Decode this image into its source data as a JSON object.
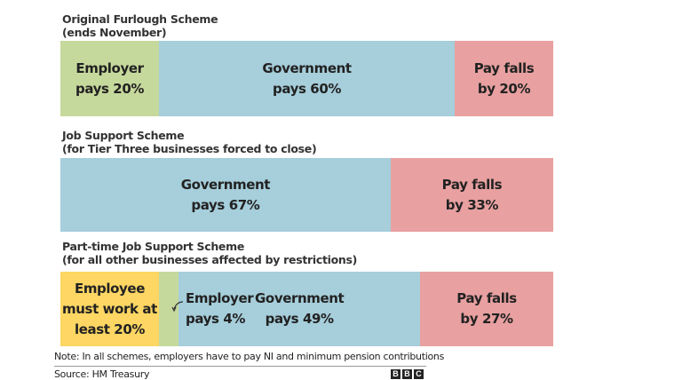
{
  "chart_data": {
    "type": "bar",
    "orientation": "horizontal-stacked-100",
    "xlim": [
      0,
      100
    ],
    "colors": {
      "employer": "#c6d99c",
      "government": "#a6cedb",
      "pay_falls": "#e8a0a0",
      "employee": "#fdd663"
    },
    "bars": [
      {
        "title": "Original Furlough Scheme\n(ends November)",
        "segments": [
          {
            "key": "employer",
            "value": 20,
            "label": "Employer\npays 20%"
          },
          {
            "key": "government",
            "value": 60,
            "label": "Government\npays 60%"
          },
          {
            "key": "pay_falls",
            "value": 20,
            "label": "Pay falls\nby 20%"
          }
        ]
      },
      {
        "title": "Job Support Scheme\n(for Tier Three businesses forced to close)",
        "segments": [
          {
            "key": "government",
            "value": 67,
            "label": "Government\npays 67%"
          },
          {
            "key": "pay_falls",
            "value": 33,
            "label": "Pay falls\nby 33%"
          }
        ]
      },
      {
        "title": "Part-time Job Support Scheme\n(for all other businesses affected by restrictions)",
        "segments": [
          {
            "key": "employee",
            "value": 20,
            "label": "Employee\nmust work at\nleast 20%"
          },
          {
            "key": "employer",
            "value": 4,
            "label": "Employer\npays 4%"
          },
          {
            "key": "government",
            "value": 49,
            "label": "Government\npays 49%"
          },
          {
            "key": "pay_falls",
            "value": 27,
            "label": "Pay falls\nby 27%"
          }
        ]
      }
    ]
  },
  "footer": {
    "note": "Note: In all schemes, employers have to pay NI and minimum pension contributions",
    "source": "Source: HM Treasury",
    "logo": [
      "B",
      "B",
      "C"
    ]
  }
}
